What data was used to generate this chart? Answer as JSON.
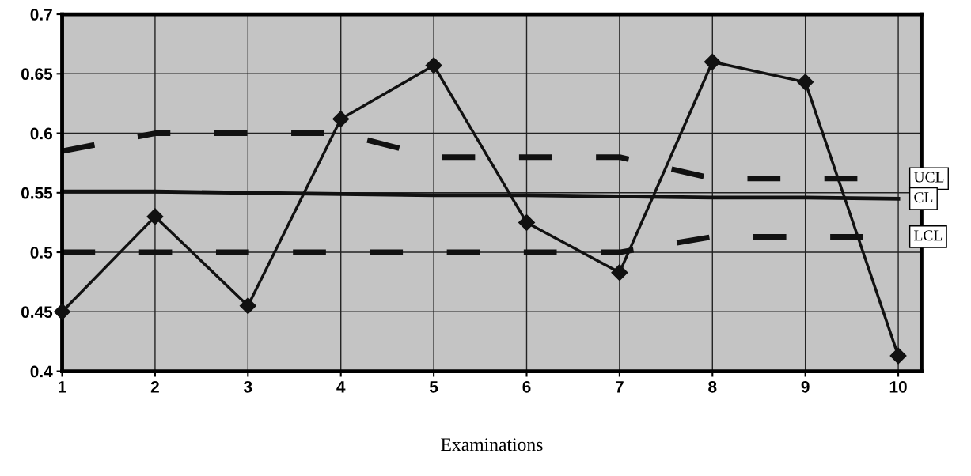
{
  "chart_data": {
    "type": "line",
    "xlabel": "Examinations",
    "categories": [
      "1",
      "2",
      "3",
      "4",
      "5",
      "6",
      "7",
      "8",
      "9",
      "10"
    ],
    "series": [
      {
        "values": [
          0.45,
          0.53,
          0.455,
          0.612,
          0.657,
          0.525,
          0.483,
          0.66,
          0.643,
          0.413
        ],
        "color": "#111111",
        "marker": "diamond",
        "line_style": "solid"
      },
      {
        "name": "UCL",
        "values": [
          0.585,
          0.6,
          0.6,
          0.6,
          0.58,
          0.58,
          0.58,
          0.562,
          0.562,
          0.562
        ],
        "color": "#111111",
        "marker": "none",
        "line_style": "dashed"
      },
      {
        "name": "CL",
        "values": [
          0.551,
          0.551,
          0.55,
          0.549,
          0.548,
          0.548,
          0.547,
          0.546,
          0.546,
          0.545
        ],
        "color": "#111111",
        "marker": "none",
        "line_style": "solid"
      },
      {
        "name": "LCL",
        "values": [
          0.5,
          0.5,
          0.5,
          0.5,
          0.5,
          0.5,
          0.5,
          0.513,
          0.513,
          0.513
        ],
        "color": "#111111",
        "marker": "none",
        "line_style": "dashed"
      }
    ],
    "ylim": [
      0.4,
      0.7
    ],
    "yticks": [
      0.4,
      0.45,
      0.5,
      0.55,
      0.6,
      0.65,
      0.7
    ],
    "grid": true,
    "legend": false
  }
}
